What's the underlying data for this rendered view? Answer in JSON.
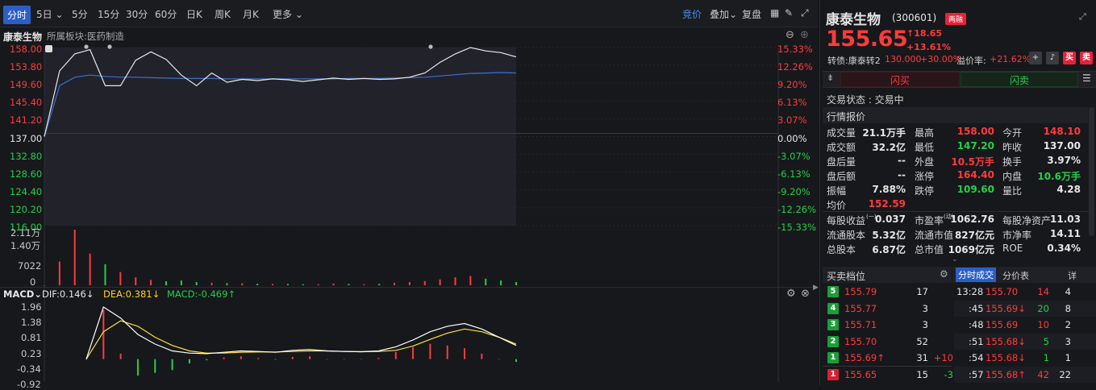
{
  "toolbar": {
    "tabs": [
      "分时",
      "5日",
      "5分",
      "15分",
      "30分",
      "60分",
      "日K",
      "周K",
      "月K",
      "更多"
    ],
    "right": {
      "bidding": "竞价",
      "overlay": "叠加",
      "restore": "复盘"
    }
  },
  "chart": {
    "stock_name": "康泰生物",
    "sector": "所属板块:医药制造",
    "price_ticks": [
      "158.00",
      "153.80",
      "149.60",
      "145.40",
      "141.20",
      "137.00",
      "132.80",
      "128.60",
      "124.40",
      "120.20",
      "116.00"
    ],
    "pct_ticks": [
      "15.33%",
      "12.26%",
      "9.20%",
      "6.13%",
      "3.07%",
      "0.00%",
      "-3.07%",
      "-6.13%",
      "-9.20%",
      "-12.26%",
      "-15.33%"
    ],
    "volume_ticks": [
      "2.11万",
      "1.40万",
      "7022",
      "0"
    ],
    "macd": {
      "name": "MACD",
      "dif": "DIF:0.146↓",
      "dea": "DEA:0.381↓",
      "macd": "MACD:-0.469↑",
      "ticks": [
        "1.96",
        "1.38",
        "0.81",
        "0.23",
        "-0.34",
        "-0.92"
      ]
    }
  },
  "colors": {
    "up": "#ff3b3b",
    "down": "#22d04a",
    "price_line": "#e8e8e8",
    "avg_line": "#3a6fd8",
    "dea_line": "#ffe13a"
  },
  "chart_data": {
    "type": "line",
    "price_ylim": [
      116.0,
      158.0
    ],
    "price": [
      137.0,
      152.5,
      156.5,
      157.5,
      149.0,
      149.0,
      155.0,
      157.0,
      155.2,
      151.5,
      149.0,
      152.0,
      149.8,
      150.5,
      150.2,
      150.6,
      150.4,
      150.0,
      150.4,
      150.8,
      150.5,
      150.7,
      150.5,
      150.6,
      151.0,
      152.0,
      154.5,
      156.5,
      158.0,
      157.2,
      156.8,
      155.8
    ],
    "avg": [
      137.0,
      149.0,
      151.0,
      151.5,
      151.2,
      151.0,
      151.0,
      150.9,
      150.8,
      150.7,
      150.7,
      150.7,
      150.6,
      150.6,
      150.6,
      150.6,
      150.6,
      150.6,
      150.6,
      150.6,
      150.7,
      150.7,
      150.7,
      150.8,
      150.9,
      151.0,
      151.3,
      151.6,
      151.9,
      152.0,
      152.1,
      152.0
    ],
    "volume": [
      0,
      9000,
      21100,
      12000,
      8000,
      5000,
      3000,
      2000,
      1500,
      1800,
      1200,
      900,
      800,
      700,
      600,
      500,
      500,
      400,
      400,
      600,
      500,
      400,
      500,
      900,
      1200,
      1600,
      2200,
      3000,
      3500,
      2500,
      1800,
      1200
    ],
    "macd_ylim": [
      -0.92,
      1.96
    ],
    "dif": [
      0,
      1.9,
      1.5,
      0.9,
      0.55,
      0.3,
      0.22,
      0.2,
      0.25,
      0.3,
      0.28,
      0.25,
      0.32,
      0.35,
      0.3,
      0.28,
      0.27,
      0.3,
      0.45,
      0.7,
      1.0,
      1.2,
      1.3,
      1.1,
      0.8,
      0.5
    ],
    "dea": [
      0,
      1.0,
      1.4,
      1.2,
      0.8,
      0.5,
      0.3,
      0.22,
      0.22,
      0.25,
      0.26,
      0.26,
      0.28,
      0.3,
      0.3,
      0.28,
      0.27,
      0.28,
      0.32,
      0.48,
      0.72,
      0.95,
      1.1,
      1.0,
      0.8,
      0.55
    ]
  },
  "quote": {
    "name": "康泰生物",
    "code": "(300601)",
    "tag": "两融",
    "price": "155.65",
    "change": "↑18.65",
    "change_pct": "+13.61%",
    "convert_label": "转债:康泰转2",
    "convert_price": "130.000",
    "convert_pct": "+30.00%",
    "premium_label": "溢价率:",
    "premium": "+21.62%",
    "flash_buy": "闪买",
    "flash_sell": "闪卖",
    "buy": "买",
    "sell": "卖",
    "status": "交易状态 : 交易中",
    "section": "行情报价",
    "r1": [
      [
        "成交量",
        "21.1万手"
      ],
      [
        "最高",
        "158.00"
      ],
      [
        "今开",
        "148.10"
      ]
    ],
    "r2": [
      [
        "成交额",
        "32.2亿"
      ],
      [
        "最低",
        "147.20"
      ],
      [
        "昨收",
        "137.00"
      ]
    ],
    "r3": [
      [
        "盘后量",
        "--"
      ],
      [
        "外盘",
        "10.5万手"
      ],
      [
        "换手",
        "3.97%"
      ]
    ],
    "r4": [
      [
        "盘后额",
        "--"
      ],
      [
        "涨停",
        "164.40"
      ],
      [
        "内盘",
        "10.6万手"
      ]
    ],
    "r5": [
      [
        "振幅",
        "7.88%"
      ],
      [
        "跌停",
        "109.60"
      ],
      [
        "量比",
        "4.28"
      ]
    ],
    "r6": [
      [
        "均价",
        "152.59"
      ]
    ],
    "f1": [
      [
        "每股收益",
        "0.037"
      ],
      [
        "市盈率",
        "1062.76"
      ],
      [
        "每股净资产",
        "11.03"
      ]
    ],
    "f2": [
      [
        "流通股本",
        "5.32亿"
      ],
      [
        "流通市值",
        "827亿元"
      ],
      [
        "市净率",
        "14.11"
      ]
    ],
    "f3": [
      [
        "总股本",
        "6.87亿"
      ],
      [
        "总市值",
        "1069亿元"
      ],
      [
        "ROE",
        "0.34%"
      ]
    ],
    "eps_sup": "(一)",
    "pe_sup": "(动)",
    "orderbook_title": "买卖档位",
    "tick_tab": "分时成交",
    "price_tab": "分价表",
    "detail": "详",
    "orders": [
      {
        "n": "5",
        "p": "155.79",
        "v": "17",
        "d": ""
      },
      {
        "n": "4",
        "p": "155.77",
        "v": "3",
        "d": ""
      },
      {
        "n": "3",
        "p": "155.71",
        "v": "3",
        "d": ""
      },
      {
        "n": "2",
        "p": "155.70",
        "v": "52",
        "d": ""
      },
      {
        "n": "1",
        "p": "155.69↑",
        "v": "31",
        "d": "+10"
      },
      {
        "n": "1",
        "p": "155.65",
        "v": "15",
        "d": "-3"
      }
    ],
    "ticks": [
      {
        "t": "13:28",
        "p": "155.70",
        "v": "14",
        "c": "4"
      },
      {
        "t": ":45",
        "p": "155.69↓",
        "v": "20",
        "c": "8"
      },
      {
        "t": ":48",
        "p": "155.69",
        "v": "10",
        "c": "2"
      },
      {
        "t": ":51",
        "p": "155.68↓",
        "v": "5",
        "c": "3"
      },
      {
        "t": ":54",
        "p": "155.68↓",
        "v": "1",
        "c": "1"
      },
      {
        "t": ":57",
        "p": "155.68↑",
        "v": "42",
        "c": "22"
      }
    ]
  }
}
